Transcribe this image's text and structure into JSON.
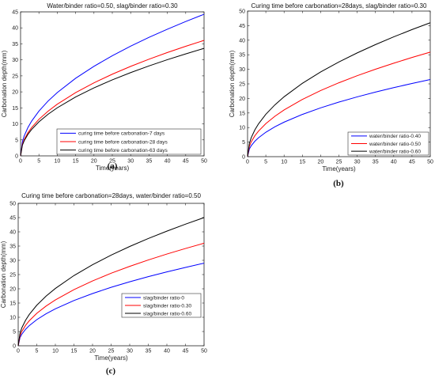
{
  "chart_data": [
    {
      "type": "line",
      "panel_label": "(a)",
      "title": "Water/binder ratio=0.50, slag/binder ratio=0.30",
      "xlabel": "Time(years)",
      "ylabel": "Carbonation depth(mm)",
      "xlim": [
        0,
        50
      ],
      "ylim": [
        0,
        45
      ],
      "xticks": [
        "0",
        "5",
        "10",
        "15",
        "20",
        "25",
        "30",
        "35",
        "40",
        "45",
        "50"
      ],
      "yticks": [
        "0",
        "5",
        "10",
        "15",
        "20",
        "25",
        "30",
        "35",
        "40",
        "45"
      ],
      "grid": false,
      "legend_position": "bottom-right",
      "x": [
        0,
        0.5,
        1,
        2,
        3,
        5,
        7.5,
        10,
        15,
        20,
        25,
        30,
        35,
        40,
        45,
        50
      ],
      "series": [
        {
          "name": "curing time before carbonation-7 days",
          "color": "#0000ff",
          "values": [
            0,
            4.43,
            6.26,
            8.85,
            10.84,
            13.99,
            17.14,
            19.79,
            24.24,
            27.99,
            31.29,
            34.28,
            37.03,
            39.58,
            41.98,
            44.25
          ]
        },
        {
          "name": "curing time before carbonation-28 days",
          "color": "#ff0000",
          "values": [
            0,
            3.61,
            5.11,
            7.22,
            8.84,
            11.42,
            13.98,
            16.14,
            19.77,
            22.83,
            25.53,
            27.97,
            30.21,
            32.29,
            34.25,
            36.1
          ]
        },
        {
          "name": "curing time before carbonation-63 days",
          "color": "#000000",
          "values": [
            0,
            3.36,
            4.75,
            6.72,
            8.23,
            10.62,
            13.01,
            15.02,
            18.4,
            21.25,
            23.76,
            26.02,
            28.11,
            30.05,
            31.87,
            33.6
          ]
        }
      ]
    },
    {
      "type": "line",
      "panel_label": "(b)",
      "title": "Curing time before carbonation=28days, slag/binder ratio=0.30",
      "xlabel": "Time(years)",
      "ylabel": "Carbonation depth(mm)",
      "xlim": [
        0,
        50
      ],
      "ylim": [
        0,
        50
      ],
      "xticks": [
        "0",
        "5",
        "10",
        "15",
        "20",
        "25",
        "30",
        "35",
        "40",
        "45",
        "50"
      ],
      "yticks": [
        "0",
        "5",
        "10",
        "15",
        "20",
        "25",
        "30",
        "35",
        "40",
        "45",
        "50"
      ],
      "grid": false,
      "legend_position": "bottom-right",
      "x": [
        0,
        0.5,
        1,
        2,
        3,
        5,
        7.5,
        10,
        15,
        20,
        25,
        30,
        35,
        40,
        45,
        50
      ],
      "series": [
        {
          "name": "water/binder ratio-0.40",
          "color": "#0000ff",
          "values": [
            0,
            2.65,
            3.75,
            5.3,
            6.49,
            8.38,
            10.26,
            11.85,
            14.51,
            16.76,
            18.74,
            20.53,
            22.17,
            23.7,
            25.14,
            26.5
          ]
        },
        {
          "name": "water/binder ratio-0.50",
          "color": "#ff0000",
          "values": [
            0,
            3.59,
            5.08,
            7.18,
            8.79,
            11.35,
            13.9,
            16.05,
            19.66,
            22.7,
            25.38,
            27.8,
            30.03,
            32.11,
            34.06,
            35.9
          ]
        },
        {
          "name": "water/binder ratio-0.60",
          "color": "#000000",
          "values": [
            0,
            4.6,
            6.51,
            9.2,
            11.27,
            14.55,
            17.81,
            20.57,
            25.19,
            29.09,
            32.53,
            35.63,
            38.48,
            41.14,
            43.64,
            46.0
          ]
        }
      ]
    },
    {
      "type": "line",
      "panel_label": "(c)",
      "title": "Curing time before carbonation=28days, water/binder ratio=0.50",
      "xlabel": "Time(years)",
      "ylabel": "Carbonation depth(mm)",
      "xlim": [
        0,
        50
      ],
      "ylim": [
        0,
        50
      ],
      "xticks": [
        "0",
        "5",
        "10",
        "15",
        "20",
        "25",
        "30",
        "35",
        "40",
        "45",
        "50"
      ],
      "yticks": [
        "0",
        "5",
        "10",
        "15",
        "20",
        "25",
        "30",
        "35",
        "40",
        "45",
        "50"
      ],
      "grid": false,
      "legend_position": "bottom-right",
      "x": [
        0,
        0.5,
        1,
        2,
        3,
        5,
        7.5,
        10,
        15,
        20,
        25,
        30,
        35,
        40,
        45,
        50
      ],
      "series": [
        {
          "name": "slag/binder ratio-0",
          "color": "#0000ff",
          "values": [
            0,
            2.9,
            4.1,
            5.8,
            7.1,
            9.17,
            11.23,
            12.97,
            15.88,
            18.34,
            20.51,
            22.46,
            24.26,
            25.94,
            27.51,
            29.0
          ]
        },
        {
          "name": "slag/binder ratio-0.30",
          "color": "#ff0000",
          "values": [
            0,
            3.6,
            5.09,
            7.2,
            8.82,
            11.38,
            13.94,
            16.1,
            19.72,
            22.77,
            25.46,
            27.89,
            30.12,
            32.2,
            34.15,
            36.0
          ]
        },
        {
          "name": "slag/binder ratio-0.60",
          "color": "#000000",
          "values": [
            0,
            4.5,
            6.36,
            9.0,
            11.02,
            14.23,
            17.43,
            20.12,
            24.65,
            28.46,
            31.82,
            34.86,
            37.65,
            40.25,
            42.69,
            45.0
          ]
        }
      ]
    }
  ]
}
